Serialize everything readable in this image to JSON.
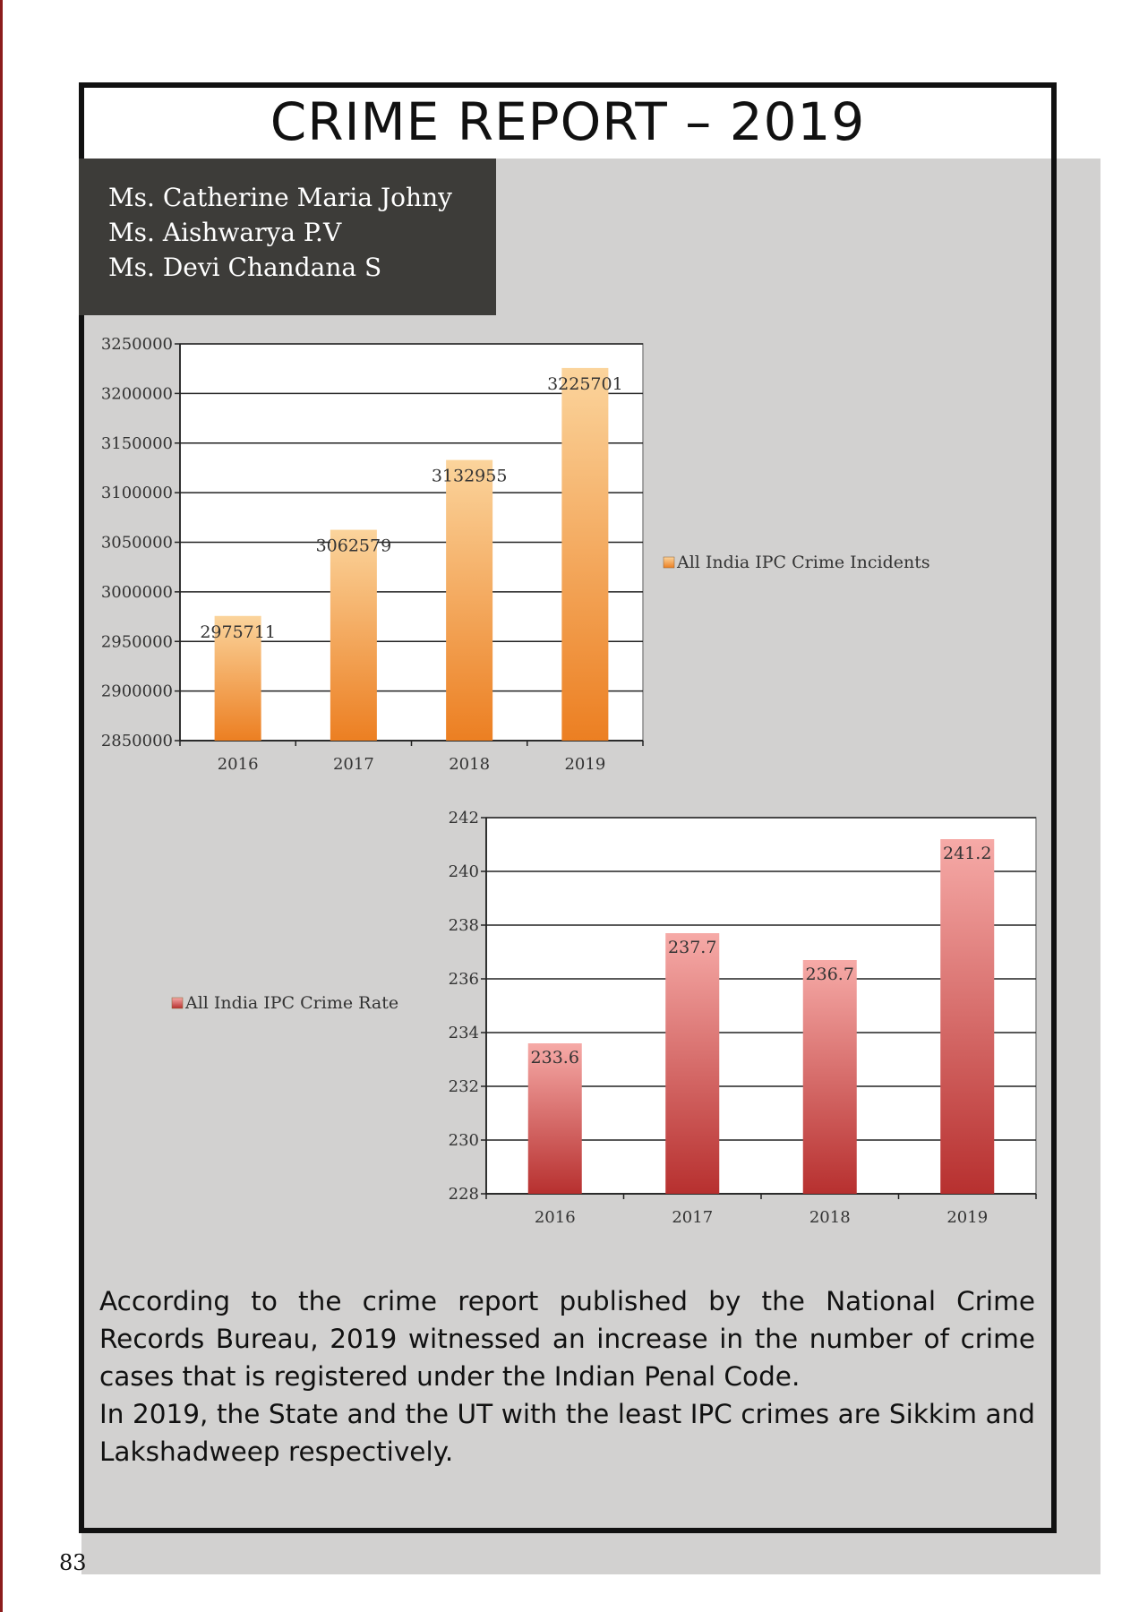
{
  "header": {
    "title": "CRIME REPORT – 2019"
  },
  "authors": [
    "Ms. Catherine Maria Johny",
    "Ms. Aishwarya P.V",
    "Ms. Devi Chandana S"
  ],
  "colors": {
    "accent_red": "#8c1c1c",
    "panel_gray": "#d2d1d0",
    "author_box": "#3d3c39",
    "bar_orange": "#ee8a2e",
    "bar_red": "#c0393c"
  },
  "chart_data": [
    {
      "type": "bar",
      "categories": [
        "2016",
        "2017",
        "2018",
        "2019"
      ],
      "series": [
        {
          "name": "All India IPC Crime Incidents",
          "values": [
            2975711,
            3062579,
            3132955,
            3225701
          ]
        }
      ],
      "value_labels": [
        "2975711",
        "3062579",
        "3132955",
        "3225701"
      ],
      "ylim": [
        2850000,
        3250000
      ],
      "ytick_labels": [
        "2850000",
        "2900000",
        "2950000",
        "3000000",
        "3050000",
        "3100000",
        "3150000",
        "3200000",
        "3250000"
      ],
      "grid": true,
      "legend_position": "right"
    },
    {
      "type": "bar",
      "categories": [
        "2016",
        "2017",
        "2018",
        "2019"
      ],
      "series": [
        {
          "name": "All India IPC Crime Rate",
          "values": [
            233.6,
            237.7,
            236.7,
            241.2
          ]
        }
      ],
      "value_labels": [
        "233.6",
        "237.7",
        "236.7",
        "241.2"
      ],
      "ylim": [
        228,
        242
      ],
      "ytick_labels": [
        "228",
        "230",
        "232",
        "234",
        "236",
        "238",
        "240",
        "242"
      ],
      "grid": true,
      "legend_position": "left"
    }
  ],
  "body": {
    "paragraph_1": "According to the crime report published by the National Crime Records Bureau, 2019 witnessed an increase in the number of crime cases that is registered under the Indian Penal Code.",
    "paragraph_2": "In 2019, the State and the UT with the least IPC crimes are Sikkim and Lakshadweep respectively."
  },
  "footer": {
    "page_number": "83"
  }
}
